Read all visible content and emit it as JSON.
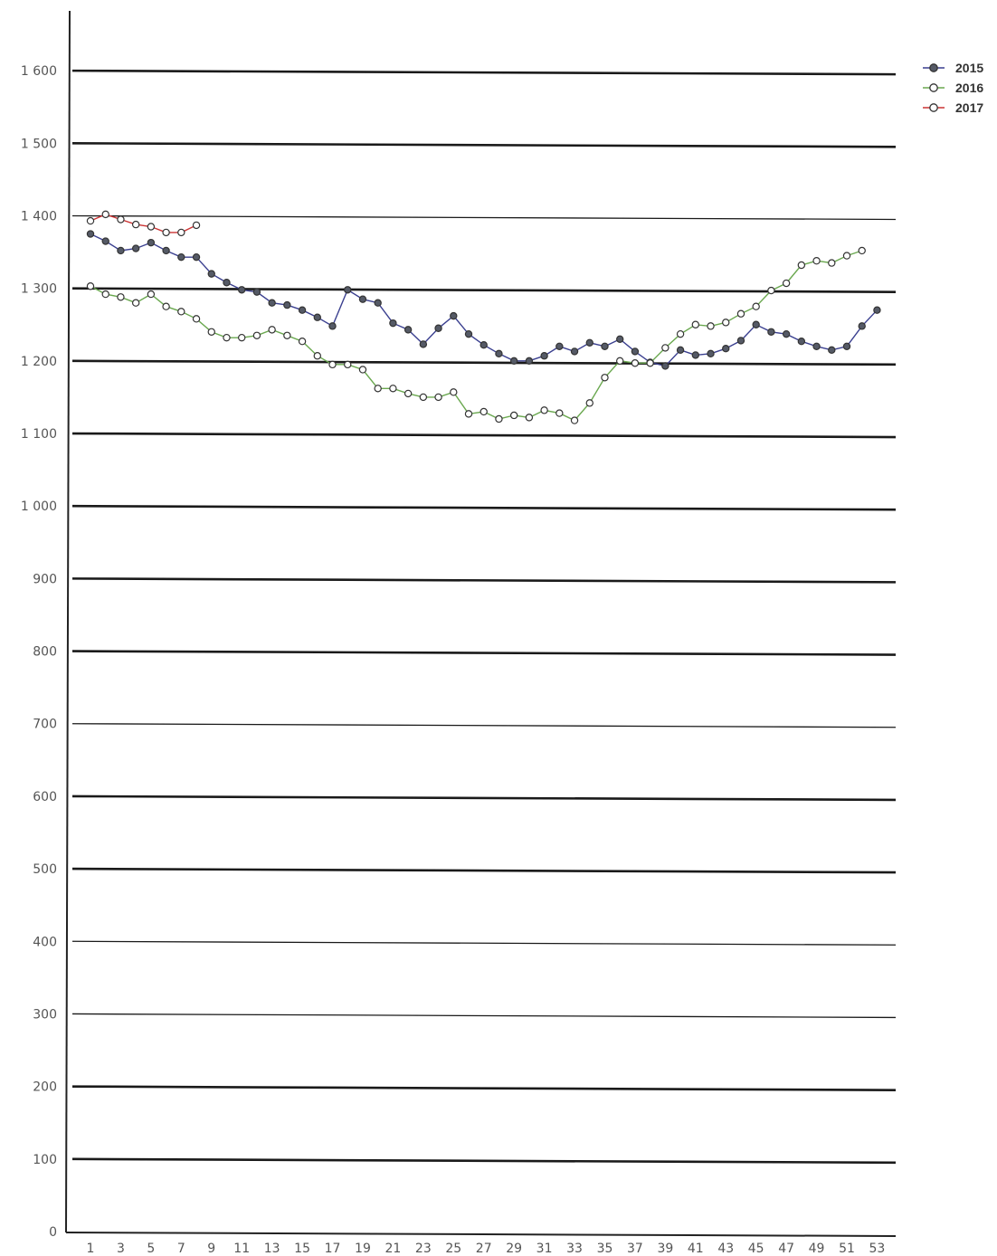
{
  "chart_data": {
    "type": "line",
    "title": "",
    "xlabel": "",
    "ylabel": "",
    "ylim": [
      0,
      1700
    ],
    "y_ticks": [
      0,
      100,
      200,
      300,
      400,
      500,
      600,
      700,
      800,
      900,
      1000,
      1100,
      1200,
      1300,
      1400,
      1500,
      1600
    ],
    "y_tick_labels": [
      "0",
      "100",
      "200",
      "300",
      "400",
      "500",
      "600",
      "700",
      "800",
      "900",
      "1 000",
      "1 100",
      "1 200",
      "1 300",
      "1 400",
      "1 500",
      "1 600"
    ],
    "x_ticks": [
      1,
      3,
      5,
      7,
      9,
      11,
      13,
      15,
      17,
      19,
      21,
      23,
      25,
      27,
      29,
      31,
      33,
      35,
      37,
      39,
      41,
      43,
      45,
      47,
      49,
      51,
      53
    ],
    "x_tick_labels": [
      "1",
      "3",
      "5",
      "7",
      "9",
      "11",
      "13",
      "15",
      "17",
      "19",
      "21",
      "23",
      "25",
      "27",
      "29",
      "31",
      "33",
      "35",
      "37",
      "39",
      "41",
      "43",
      "45",
      "47",
      "49",
      "51",
      "53"
    ],
    "grid": true,
    "legend_position": "top-right",
    "series": [
      {
        "name": "2015",
        "color": "#3a3f8f",
        "marker_fill": "#555a66",
        "x": [
          1,
          2,
          3,
          4,
          5,
          6,
          7,
          8,
          9,
          10,
          11,
          12,
          13,
          14,
          15,
          16,
          17,
          18,
          19,
          20,
          21,
          22,
          23,
          24,
          25,
          26,
          27,
          28,
          29,
          30,
          31,
          32,
          33,
          34,
          35,
          36,
          37,
          38,
          39,
          40,
          41,
          42,
          43,
          44,
          45,
          46,
          47,
          48,
          49,
          50,
          51,
          52,
          53
        ],
        "values": [
          1375,
          1365,
          1352,
          1355,
          1363,
          1352,
          1343,
          1343,
          1320,
          1308,
          1298,
          1295,
          1280,
          1277,
          1270,
          1260,
          1248,
          1298,
          1285,
          1280,
          1252,
          1243,
          1223,
          1245,
          1262,
          1237,
          1222,
          1210,
          1200,
          1200,
          1207,
          1220,
          1213,
          1225,
          1220,
          1230,
          1213,
          1198,
          1193,
          1215,
          1208,
          1210,
          1217,
          1228,
          1250,
          1240,
          1237,
          1227,
          1220,
          1215,
          1220,
          1248,
          1270
        ]
      },
      {
        "name": "2016",
        "color": "#6aa84f",
        "marker_fill": "#ffffff",
        "x": [
          1,
          2,
          3,
          4,
          5,
          6,
          7,
          8,
          9,
          10,
          11,
          12,
          13,
          14,
          15,
          16,
          17,
          18,
          19,
          20,
          21,
          22,
          23,
          24,
          25,
          26,
          27,
          28,
          29,
          30,
          31,
          32,
          33,
          34,
          35,
          36,
          37,
          38,
          39,
          40,
          41,
          42,
          43,
          44,
          45,
          46,
          47,
          48,
          49,
          50,
          51,
          52
        ],
        "values": [
          1303,
          1292,
          1288,
          1280,
          1292,
          1275,
          1268,
          1258,
          1240,
          1232,
          1232,
          1235,
          1243,
          1235,
          1227,
          1207,
          1195,
          1195,
          1188,
          1162,
          1162,
          1155,
          1150,
          1150,
          1157,
          1127,
          1130,
          1120,
          1125,
          1122,
          1132,
          1128,
          1118,
          1142,
          1177,
          1200,
          1197,
          1197,
          1218,
          1237,
          1250,
          1248,
          1253,
          1265,
          1275,
          1297,
          1307,
          1332,
          1338,
          1335,
          1345,
          1352
        ]
      },
      {
        "name": "2017",
        "color": "#cc3333",
        "marker_fill": "#ffffff",
        "x": [
          1,
          2,
          3,
          4,
          5,
          6,
          7,
          8
        ],
        "values": [
          1393,
          1402,
          1395,
          1388,
          1385,
          1377,
          1377,
          1387
        ]
      }
    ]
  }
}
